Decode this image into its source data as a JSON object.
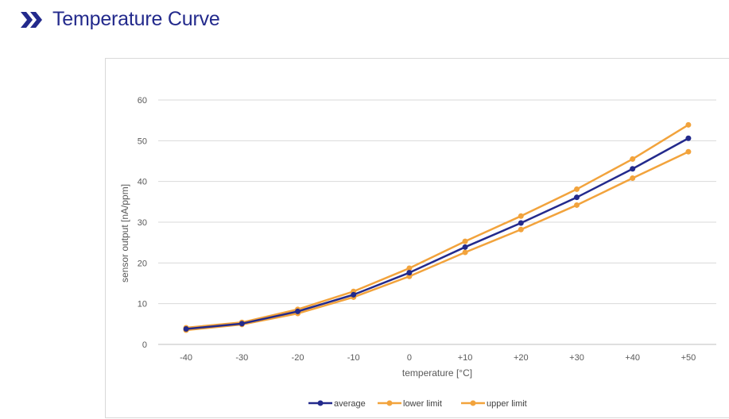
{
  "header": {
    "icon": "double-chevron-right-icon",
    "title": "Temperature Curve"
  },
  "colors": {
    "accent": "#232a8c",
    "average": "#232a8c",
    "limits": "#f2a33c",
    "grid": "#d9d9d9",
    "text": "#595959"
  },
  "chart_data": {
    "type": "line",
    "title": "",
    "xlabel": "temperature [°C]",
    "ylabel": "sensor output [nA/ppm]",
    "categories": [
      "-40",
      "-30",
      "-20",
      "-10",
      "0",
      "+10",
      "+20",
      "+30",
      "+40",
      "+50"
    ],
    "ylim": [
      0,
      60
    ],
    "yticks": [
      0,
      10,
      20,
      30,
      40,
      50,
      60
    ],
    "grid": true,
    "legend_position": "bottom-center",
    "series": [
      {
        "name": "average",
        "color": "#232a8c",
        "values": [
          3.8,
          5.1,
          8.1,
          12.2,
          17.6,
          23.9,
          29.8,
          36.1,
          43.1,
          50.6
        ]
      },
      {
        "name": "lower limit",
        "color": "#f2a33c",
        "values": [
          3.5,
          4.9,
          7.6,
          11.6,
          16.7,
          22.6,
          28.2,
          34.2,
          40.8,
          47.3
        ]
      },
      {
        "name": "upper limit",
        "color": "#f2a33c",
        "values": [
          4.1,
          5.4,
          8.6,
          13.0,
          18.7,
          25.3,
          31.5,
          38.1,
          45.5,
          53.9
        ]
      }
    ]
  }
}
